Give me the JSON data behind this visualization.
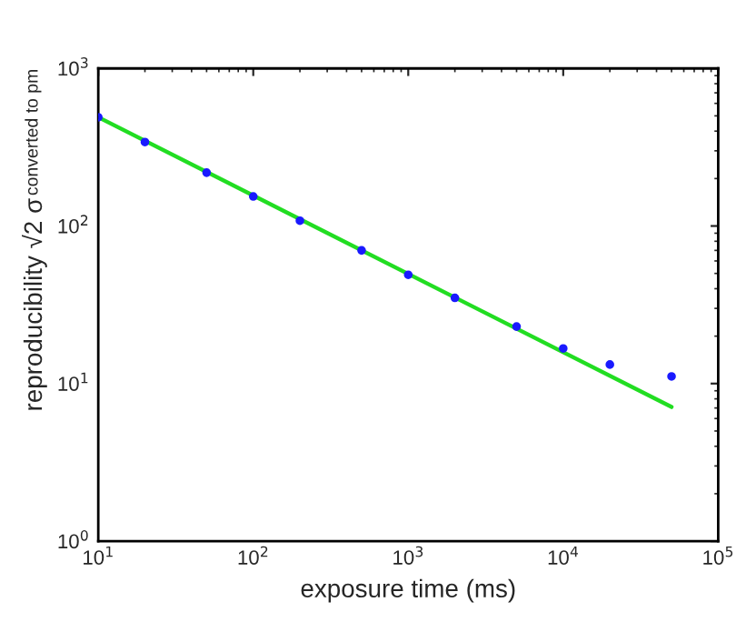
{
  "chart_data": {
    "type": "scatter",
    "xlabel": "exposure time (ms)",
    "ylabel": "reproducibility √2 σ$_{converted to pm}$",
    "log": "xy",
    "xlim": [
      10,
      100000
    ],
    "ylim": [
      1,
      1000
    ],
    "xticks": [
      {
        "value": 10,
        "label": "10$^{1}$"
      },
      {
        "value": 100,
        "label": "10$^{2}$"
      },
      {
        "value": 1000,
        "label": "10$^{3}$"
      },
      {
        "value": 10000,
        "label": "10$^{4}$"
      },
      {
        "value": 100000,
        "label": "10$^{5}$"
      }
    ],
    "yticks": [
      {
        "value": 1,
        "label": "10$^{0}$"
      },
      {
        "value": 10,
        "label": "10$^{1}$"
      },
      {
        "value": 100,
        "label": "10$^{2}$"
      },
      {
        "value": 1000,
        "label": "10$^{3}$"
      }
    ],
    "grid": false,
    "legend": false,
    "series": [
      {
        "type": "line",
        "color": "#22dd22",
        "x": [
          10,
          50000
        ],
        "values": [
          490,
          7.1
        ],
        "marker": "none",
        "line_style": "solid"
      },
      {
        "type": "scatter",
        "color": "#1a1aff",
        "x": [
          10,
          20,
          50,
          100,
          200,
          500,
          1000,
          2000,
          5000,
          10000,
          20000,
          50000
        ],
        "values": [
          490,
          341,
          218,
          154,
          108,
          70,
          49,
          35,
          23,
          16.7,
          13.2,
          11.1
        ],
        "marker": "circle"
      }
    ]
  }
}
